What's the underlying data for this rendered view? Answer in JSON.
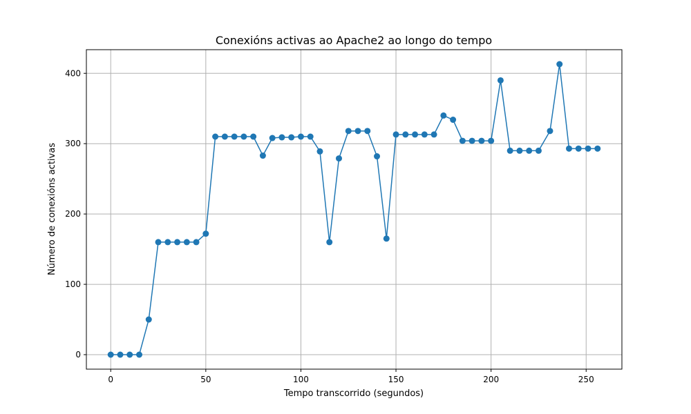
{
  "chart_data": {
    "type": "line",
    "title": "Conexións activas ao Apache2 ao longo do tempo",
    "xlabel": "Tempo transcorrido (segundos)",
    "ylabel": "Número de conexións activas",
    "xlim": [
      -12.8,
      268.8
    ],
    "ylim": [
      -20.6,
      433.6
    ],
    "xticks": [
      0,
      50,
      100,
      150,
      200,
      250
    ],
    "yticks": [
      0,
      100,
      200,
      300,
      400
    ],
    "grid": true,
    "series": [
      {
        "color": "#1f77b4",
        "marker": "circle",
        "x": [
          0,
          5,
          10,
          15,
          20,
          25,
          30,
          35,
          40,
          45,
          50,
          55,
          60,
          65,
          70,
          75,
          80,
          85,
          90,
          95,
          100,
          105,
          110,
          115,
          120,
          125,
          130,
          135,
          140,
          145,
          150,
          155,
          160,
          165,
          170,
          175,
          180,
          185,
          190,
          195,
          200,
          205,
          210,
          215,
          220,
          225,
          231,
          236,
          241,
          246,
          251,
          256
        ],
        "y": [
          0,
          0,
          0,
          0,
          50,
          160,
          160,
          160,
          160,
          160,
          172,
          310,
          310,
          310,
          310,
          310,
          283,
          308,
          309,
          309,
          310,
          310,
          289,
          160,
          279,
          318,
          318,
          318,
          282,
          165,
          313,
          313,
          313,
          313,
          313,
          340,
          334,
          304,
          304,
          304,
          304,
          390,
          290,
          290,
          290,
          290,
          318,
          413,
          293,
          293,
          293,
          293
        ]
      }
    ]
  }
}
